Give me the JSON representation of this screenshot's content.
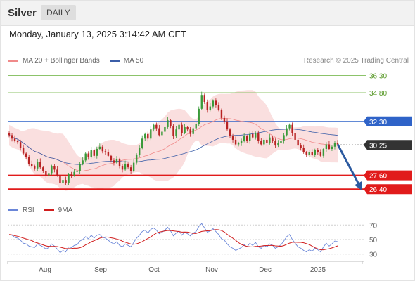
{
  "header": {
    "instrument": "Silver",
    "period": "DAILY"
  },
  "datetime": "Monday, January 13, 2025 3:14:42 AM CET",
  "legend": {
    "bollinger_label": "MA 20 + Bollinger Bands",
    "ma50_label": "MA 50",
    "rsi_label": "RSI",
    "rsi_ma_label": "9MA"
  },
  "copyright": "Research © 2025 Trading Central",
  "colors": {
    "up": "#3a9a3a",
    "down": "#b82222",
    "band_fill": "#f7caca",
    "ma20": "#f08a8a",
    "ma50": "#3b5ea8",
    "resistance_green": "#8cc36a",
    "pivot_blue": "#2f63c8",
    "support_red": "#e11b1b",
    "current_black": "#333333",
    "rsi_line": "#6a86d8",
    "rsi_ma_line": "#d11d1d"
  },
  "chart_data": {
    "type": "candlestick",
    "ylim": [
      25.8,
      37.0
    ],
    "x_tick_labels": [
      "Aug",
      "Sep",
      "Oct",
      "Nov",
      "Dec",
      "2025"
    ],
    "levels": [
      {
        "value": 36.3,
        "label": "36.30",
        "kind": "resistance"
      },
      {
        "value": 34.8,
        "label": "34.80",
        "kind": "resistance"
      },
      {
        "value": 32.3,
        "label": "32.30",
        "kind": "pivot"
      },
      {
        "value": 30.25,
        "label": "30.25",
        "kind": "current"
      },
      {
        "value": 27.6,
        "label": "27.60",
        "kind": "support"
      },
      {
        "value": 26.4,
        "label": "26.40",
        "kind": "support"
      }
    ],
    "projection": {
      "from": 30.3,
      "to": 26.6
    },
    "closes": [
      31.1,
      30.8,
      30.6,
      30.5,
      30.0,
      29.5,
      29.2,
      28.6,
      28.4,
      28.2,
      28.8,
      28.3,
      28.0,
      27.6,
      27.8,
      28.4,
      28.1,
      27.6,
      26.9,
      27.2,
      26.9,
      27.7,
      27.6,
      27.9,
      28.0,
      28.6,
      28.9,
      29.5,
      29.2,
      29.8,
      29.3,
      29.9,
      30.1,
      29.7,
      29.6,
      29.3,
      28.9,
      28.7,
      29.0,
      28.4,
      28.1,
      28.6,
      28.3,
      28.0,
      28.7,
      29.4,
      30.0,
      30.8,
      31.2,
      30.8,
      31.6,
      32.0,
      31.7,
      31.1,
      31.4,
      31.8,
      32.4,
      31.9,
      31.0,
      31.6,
      32.0,
      31.3,
      31.8,
      31.6,
      31.2,
      31.7,
      32.1,
      33.4,
      34.6,
      34.0,
      33.3,
      33.6,
      34.1,
      33.7,
      33.3,
      32.6,
      32.3,
      31.6,
      31.0,
      30.7,
      30.3,
      30.4,
      30.6,
      31.0,
      30.6,
      31.2,
      30.9,
      31.3,
      30.6,
      30.3,
      30.7,
      30.4,
      30.9,
      30.6,
      30.2,
      30.4,
      30.6,
      31.1,
      31.7,
      32.0,
      31.3,
      30.7,
      30.2,
      30.0,
      29.6,
      29.4,
      29.6,
      29.4,
      29.8,
      29.6,
      29.3,
      29.9,
      30.3,
      29.9,
      30.1,
      30.4,
      30.3
    ]
  },
  "rsi_chart": {
    "type": "line",
    "ylim": [
      22,
      78
    ],
    "tick_labels": [
      "70",
      "50",
      "30"
    ],
    "rsi": [
      57,
      56,
      53,
      52,
      49,
      45,
      44,
      41,
      40,
      39,
      44,
      42,
      40,
      37,
      39,
      44,
      41,
      37,
      32,
      35,
      33,
      40,
      39,
      42,
      43,
      48,
      50,
      54,
      51,
      56,
      52,
      56,
      57,
      53,
      52,
      49,
      46,
      44,
      47,
      42,
      40,
      44,
      42,
      40,
      46,
      52,
      56,
      61,
      63,
      59,
      64,
      66,
      63,
      58,
      60,
      63,
      67,
      62,
      55,
      59,
      62,
      56,
      60,
      58,
      55,
      59,
      61,
      68,
      72,
      66,
      60,
      62,
      65,
      61,
      57,
      51,
      49,
      44,
      40,
      38,
      35,
      37,
      39,
      43,
      40,
      45,
      42,
      46,
      40,
      38,
      42,
      40,
      44,
      42,
      38,
      40,
      43,
      48,
      54,
      57,
      50,
      45,
      40,
      38,
      35,
      33,
      36,
      34,
      38,
      36,
      33,
      40,
      45,
      41,
      44,
      48,
      47
    ]
  }
}
